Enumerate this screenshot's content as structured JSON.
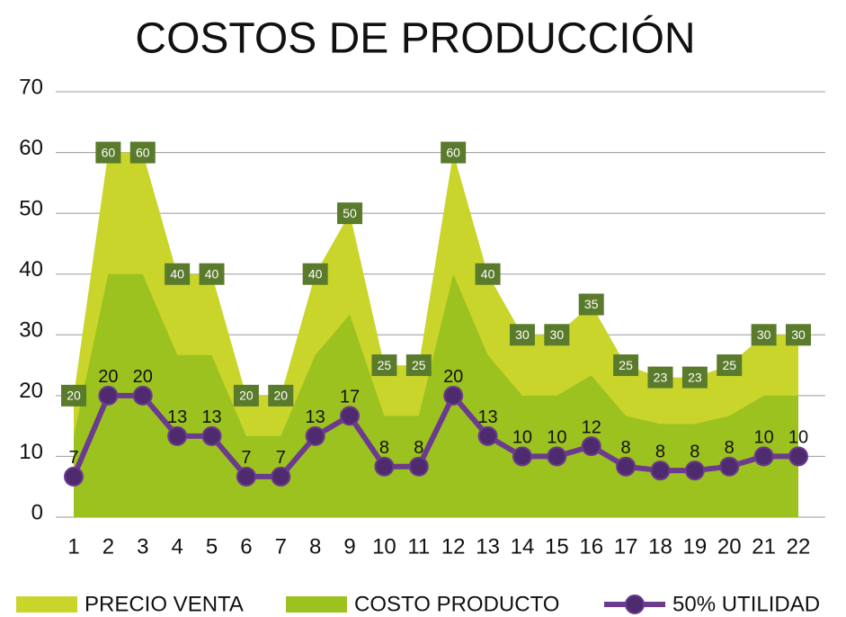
{
  "chart_data": {
    "type": "area_line",
    "title": "COSTOS DE PRODUCCIÓN",
    "categories": [
      1,
      2,
      3,
      4,
      5,
      6,
      7,
      8,
      9,
      10,
      11,
      12,
      13,
      14,
      15,
      16,
      17,
      18,
      19,
      20,
      21,
      22
    ],
    "series": [
      {
        "name": "PRECIO VENTA",
        "kind": "area",
        "color": "#c9d52b",
        "labeled": true,
        "values": [
          20,
          60,
          60,
          40,
          40,
          20,
          20,
          40,
          50,
          25,
          25,
          60,
          40,
          30,
          30,
          35,
          25,
          23,
          23,
          25,
          30,
          30
        ]
      },
      {
        "name": "COSTO PRODUCTO",
        "kind": "area",
        "color": "#9cc21f",
        "labeled": false,
        "values": [
          13.33,
          40,
          40,
          26.67,
          26.67,
          13.33,
          13.33,
          26.67,
          33.33,
          16.67,
          16.67,
          40,
          26.67,
          20,
          20,
          23.33,
          16.67,
          15.33,
          15.33,
          16.67,
          20,
          20
        ]
      },
      {
        "name": "50% UTILIDAD",
        "kind": "line",
        "color": "#6a3b8e",
        "labeled": true,
        "values": [
          6.67,
          20,
          20,
          13.33,
          13.33,
          6.67,
          6.67,
          13.33,
          16.67,
          8.33,
          8.33,
          20,
          13.33,
          10,
          10,
          11.67,
          8.33,
          7.67,
          7.67,
          8.33,
          10,
          10
        ],
        "value_labels": [
          "7",
          "20",
          "20",
          "13",
          "13",
          "7",
          "7",
          "13",
          "17",
          "8",
          "8",
          "20",
          "13",
          "10",
          "10",
          "12",
          "8",
          "8",
          "8",
          "8",
          "10",
          "10"
        ]
      }
    ],
    "ylim": [
      0,
      70
    ],
    "yticks": [
      0,
      10,
      20,
      30,
      40,
      50,
      60,
      70
    ],
    "grid": true,
    "label_box_color": "#5a7a2c"
  }
}
